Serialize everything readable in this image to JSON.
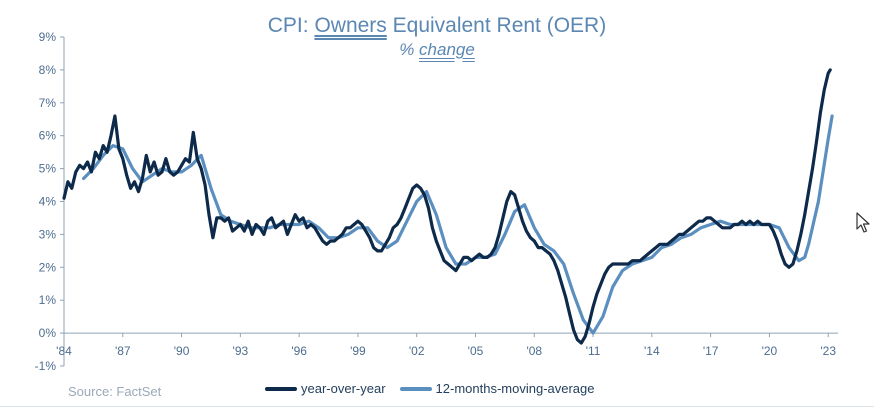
{
  "title_parts": {
    "pre": "CPI: ",
    "underlined": "Owners",
    "post": " Equivalent Rent (OER)"
  },
  "subtitle_parts": {
    "pre": "% ",
    "underlined": "change"
  },
  "source": "Source: FactSet",
  "colors": {
    "yoy": "#0d2a4a",
    "ma": "#5b8fc0",
    "axis": "#8fa3b5",
    "title": "#5b87b3"
  },
  "cursor_icon": "mouse-pointer-icon",
  "chart_data": {
    "type": "line",
    "title": "CPI: Owners Equivalent Rent (OER)",
    "subtitle": "% change",
    "xlabel": "",
    "ylabel": "",
    "xlim": [
      1984,
      2023.5
    ],
    "ylim": [
      -1,
      9
    ],
    "x_ticks": [
      {
        "value": 1984,
        "label": "'84"
      },
      {
        "value": 1987,
        "label": "'87"
      },
      {
        "value": 1990,
        "label": "'90"
      },
      {
        "value": 1993,
        "label": "'93"
      },
      {
        "value": 1996,
        "label": "'96"
      },
      {
        "value": 1999,
        "label": "'99"
      },
      {
        "value": 2002,
        "label": "'02"
      },
      {
        "value": 2005,
        "label": "'05"
      },
      {
        "value": 2008,
        "label": "'08"
      },
      {
        "value": 2011,
        "label": "'11"
      },
      {
        "value": 2014,
        "label": "'14"
      },
      {
        "value": 2017,
        "label": "'17"
      },
      {
        "value": 2020,
        "label": "'20"
      },
      {
        "value": 2023,
        "label": "'23"
      }
    ],
    "y_ticks": [
      {
        "value": -1,
        "label": "-1%"
      },
      {
        "value": 0,
        "label": "0%"
      },
      {
        "value": 1,
        "label": "1%"
      },
      {
        "value": 2,
        "label": "2%"
      },
      {
        "value": 3,
        "label": "3%"
      },
      {
        "value": 4,
        "label": "4%"
      },
      {
        "value": 5,
        "label": "5%"
      },
      {
        "value": 6,
        "label": "6%"
      },
      {
        "value": 7,
        "label": "7%"
      },
      {
        "value": 8,
        "label": "8%"
      },
      {
        "value": 9,
        "label": "9%"
      }
    ],
    "grid": false,
    "legend_position": "bottom",
    "series": [
      {
        "name": "year-over-year",
        "points": [
          [
            1984.0,
            4.1
          ],
          [
            1984.2,
            4.6
          ],
          [
            1984.4,
            4.4
          ],
          [
            1984.6,
            4.9
          ],
          [
            1984.8,
            5.1
          ],
          [
            1985.0,
            5.0
          ],
          [
            1985.2,
            5.2
          ],
          [
            1985.4,
            4.9
          ],
          [
            1985.6,
            5.5
          ],
          [
            1985.8,
            5.3
          ],
          [
            1986.0,
            5.7
          ],
          [
            1986.2,
            5.5
          ],
          [
            1986.4,
            6.0
          ],
          [
            1986.6,
            6.6
          ],
          [
            1986.8,
            5.6
          ],
          [
            1987.0,
            5.3
          ],
          [
            1987.2,
            4.8
          ],
          [
            1987.4,
            4.4
          ],
          [
            1987.6,
            4.6
          ],
          [
            1987.8,
            4.3
          ],
          [
            1988.0,
            4.7
          ],
          [
            1988.2,
            5.4
          ],
          [
            1988.4,
            4.9
          ],
          [
            1988.6,
            5.2
          ],
          [
            1988.8,
            4.8
          ],
          [
            1989.0,
            4.9
          ],
          [
            1989.2,
            5.3
          ],
          [
            1989.4,
            4.9
          ],
          [
            1989.6,
            4.8
          ],
          [
            1989.8,
            4.9
          ],
          [
            1990.0,
            5.1
          ],
          [
            1990.2,
            5.3
          ],
          [
            1990.4,
            5.2
          ],
          [
            1990.6,
            6.1
          ],
          [
            1990.8,
            5.3
          ],
          [
            1991.0,
            5.0
          ],
          [
            1991.2,
            4.5
          ],
          [
            1991.4,
            3.6
          ],
          [
            1991.6,
            2.9
          ],
          [
            1991.8,
            3.5
          ],
          [
            1992.0,
            3.5
          ],
          [
            1992.2,
            3.4
          ],
          [
            1992.4,
            3.5
          ],
          [
            1992.6,
            3.1
          ],
          [
            1992.8,
            3.2
          ],
          [
            1993.0,
            3.3
          ],
          [
            1993.2,
            3.1
          ],
          [
            1993.4,
            3.4
          ],
          [
            1993.6,
            3.0
          ],
          [
            1993.8,
            3.3
          ],
          [
            1994.0,
            3.2
          ],
          [
            1994.2,
            3.0
          ],
          [
            1994.4,
            3.4
          ],
          [
            1994.6,
            3.5
          ],
          [
            1994.8,
            3.2
          ],
          [
            1995.0,
            3.3
          ],
          [
            1995.2,
            3.4
          ],
          [
            1995.4,
            3.0
          ],
          [
            1995.6,
            3.3
          ],
          [
            1995.8,
            3.6
          ],
          [
            1996.0,
            3.4
          ],
          [
            1996.2,
            3.5
          ],
          [
            1996.4,
            3.2
          ],
          [
            1996.6,
            3.3
          ],
          [
            1996.8,
            3.2
          ],
          [
            1997.0,
            3.0
          ],
          [
            1997.2,
            2.8
          ],
          [
            1997.4,
            2.7
          ],
          [
            1997.6,
            2.8
          ],
          [
            1997.8,
            2.8
          ],
          [
            1998.0,
            2.9
          ],
          [
            1998.2,
            3.0
          ],
          [
            1998.4,
            3.2
          ],
          [
            1998.6,
            3.2
          ],
          [
            1998.8,
            3.3
          ],
          [
            1999.0,
            3.4
          ],
          [
            1999.2,
            3.3
          ],
          [
            1999.4,
            3.1
          ],
          [
            1999.6,
            2.9
          ],
          [
            1999.8,
            2.6
          ],
          [
            2000.0,
            2.5
          ],
          [
            2000.2,
            2.5
          ],
          [
            2000.4,
            2.7
          ],
          [
            2000.6,
            2.9
          ],
          [
            2000.8,
            3.2
          ],
          [
            2001.0,
            3.3
          ],
          [
            2001.2,
            3.5
          ],
          [
            2001.4,
            3.8
          ],
          [
            2001.6,
            4.1
          ],
          [
            2001.8,
            4.4
          ],
          [
            2002.0,
            4.5
          ],
          [
            2002.2,
            4.4
          ],
          [
            2002.4,
            4.2
          ],
          [
            2002.6,
            3.8
          ],
          [
            2002.8,
            3.2
          ],
          [
            2003.0,
            2.8
          ],
          [
            2003.2,
            2.5
          ],
          [
            2003.4,
            2.2
          ],
          [
            2003.6,
            2.1
          ],
          [
            2003.8,
            2.0
          ],
          [
            2004.0,
            1.9
          ],
          [
            2004.2,
            2.1
          ],
          [
            2004.4,
            2.3
          ],
          [
            2004.6,
            2.3
          ],
          [
            2004.8,
            2.2
          ],
          [
            2005.0,
            2.3
          ],
          [
            2005.2,
            2.4
          ],
          [
            2005.4,
            2.3
          ],
          [
            2005.6,
            2.3
          ],
          [
            2005.8,
            2.4
          ],
          [
            2006.0,
            2.6
          ],
          [
            2006.2,
            3.0
          ],
          [
            2006.4,
            3.5
          ],
          [
            2006.6,
            4.0
          ],
          [
            2006.8,
            4.3
          ],
          [
            2007.0,
            4.2
          ],
          [
            2007.2,
            3.8
          ],
          [
            2007.4,
            3.4
          ],
          [
            2007.6,
            3.1
          ],
          [
            2007.8,
            2.9
          ],
          [
            2008.0,
            2.8
          ],
          [
            2008.2,
            2.6
          ],
          [
            2008.4,
            2.6
          ],
          [
            2008.6,
            2.5
          ],
          [
            2008.8,
            2.4
          ],
          [
            2009.0,
            2.2
          ],
          [
            2009.2,
            1.9
          ],
          [
            2009.4,
            1.5
          ],
          [
            2009.6,
            1.1
          ],
          [
            2009.8,
            0.6
          ],
          [
            2010.0,
            0.1
          ],
          [
            2010.2,
            -0.2
          ],
          [
            2010.4,
            -0.3
          ],
          [
            2010.6,
            -0.1
          ],
          [
            2010.8,
            0.3
          ],
          [
            2011.0,
            0.8
          ],
          [
            2011.2,
            1.2
          ],
          [
            2011.4,
            1.5
          ],
          [
            2011.6,
            1.8
          ],
          [
            2011.8,
            2.0
          ],
          [
            2012.0,
            2.1
          ],
          [
            2012.2,
            2.1
          ],
          [
            2012.4,
            2.1
          ],
          [
            2012.6,
            2.1
          ],
          [
            2012.8,
            2.1
          ],
          [
            2013.0,
            2.2
          ],
          [
            2013.2,
            2.2
          ],
          [
            2013.4,
            2.2
          ],
          [
            2013.6,
            2.3
          ],
          [
            2013.8,
            2.4
          ],
          [
            2014.0,
            2.5
          ],
          [
            2014.2,
            2.6
          ],
          [
            2014.4,
            2.7
          ],
          [
            2014.6,
            2.7
          ],
          [
            2014.8,
            2.7
          ],
          [
            2015.0,
            2.8
          ],
          [
            2015.2,
            2.9
          ],
          [
            2015.4,
            3.0
          ],
          [
            2015.6,
            3.0
          ],
          [
            2015.8,
            3.1
          ],
          [
            2016.0,
            3.2
          ],
          [
            2016.2,
            3.3
          ],
          [
            2016.4,
            3.4
          ],
          [
            2016.6,
            3.4
          ],
          [
            2016.8,
            3.5
          ],
          [
            2017.0,
            3.5
          ],
          [
            2017.2,
            3.4
          ],
          [
            2017.4,
            3.3
          ],
          [
            2017.6,
            3.2
          ],
          [
            2017.8,
            3.2
          ],
          [
            2018.0,
            3.2
          ],
          [
            2018.2,
            3.3
          ],
          [
            2018.4,
            3.3
          ],
          [
            2018.6,
            3.4
          ],
          [
            2018.8,
            3.3
          ],
          [
            2019.0,
            3.4
          ],
          [
            2019.2,
            3.3
          ],
          [
            2019.4,
            3.4
          ],
          [
            2019.6,
            3.3
          ],
          [
            2019.8,
            3.3
          ],
          [
            2020.0,
            3.3
          ],
          [
            2020.2,
            3.1
          ],
          [
            2020.4,
            2.8
          ],
          [
            2020.6,
            2.4
          ],
          [
            2020.8,
            2.1
          ],
          [
            2021.0,
            2.0
          ],
          [
            2021.2,
            2.1
          ],
          [
            2021.4,
            2.5
          ],
          [
            2021.6,
            3.0
          ],
          [
            2021.8,
            3.6
          ],
          [
            2022.0,
            4.3
          ],
          [
            2022.2,
            5.0
          ],
          [
            2022.4,
            5.8
          ],
          [
            2022.6,
            6.7
          ],
          [
            2022.8,
            7.4
          ],
          [
            2023.0,
            7.9
          ],
          [
            2023.1,
            8.0
          ]
        ]
      },
      {
        "name": "12-months-moving-average",
        "points": [
          [
            1985.0,
            4.7
          ],
          [
            1985.5,
            5.0
          ],
          [
            1986.0,
            5.4
          ],
          [
            1986.5,
            5.7
          ],
          [
            1987.0,
            5.6
          ],
          [
            1987.5,
            5.0
          ],
          [
            1988.0,
            4.6
          ],
          [
            1988.5,
            4.8
          ],
          [
            1989.0,
            5.0
          ],
          [
            1989.5,
            4.9
          ],
          [
            1990.0,
            4.9
          ],
          [
            1990.5,
            5.1
          ],
          [
            1991.0,
            5.4
          ],
          [
            1991.5,
            4.4
          ],
          [
            1992.0,
            3.6
          ],
          [
            1992.5,
            3.4
          ],
          [
            1993.0,
            3.3
          ],
          [
            1993.5,
            3.2
          ],
          [
            1994.0,
            3.2
          ],
          [
            1994.5,
            3.2
          ],
          [
            1995.0,
            3.3
          ],
          [
            1995.5,
            3.3
          ],
          [
            1996.0,
            3.3
          ],
          [
            1996.5,
            3.4
          ],
          [
            1997.0,
            3.2
          ],
          [
            1997.5,
            2.9
          ],
          [
            1998.0,
            2.9
          ],
          [
            1998.5,
            3.0
          ],
          [
            1999.0,
            3.2
          ],
          [
            1999.5,
            3.2
          ],
          [
            2000.0,
            2.8
          ],
          [
            2000.5,
            2.6
          ],
          [
            2001.0,
            2.8
          ],
          [
            2001.5,
            3.4
          ],
          [
            2002.0,
            4.0
          ],
          [
            2002.5,
            4.3
          ],
          [
            2003.0,
            3.6
          ],
          [
            2003.5,
            2.6
          ],
          [
            2004.0,
            2.1
          ],
          [
            2004.5,
            2.1
          ],
          [
            2005.0,
            2.3
          ],
          [
            2005.5,
            2.3
          ],
          [
            2006.0,
            2.4
          ],
          [
            2006.5,
            3.0
          ],
          [
            2007.0,
            3.7
          ],
          [
            2007.5,
            3.9
          ],
          [
            2008.0,
            3.2
          ],
          [
            2008.5,
            2.7
          ],
          [
            2009.0,
            2.5
          ],
          [
            2009.5,
            2.1
          ],
          [
            2010.0,
            1.2
          ],
          [
            2010.5,
            0.4
          ],
          [
            2011.0,
            0.0
          ],
          [
            2011.5,
            0.5
          ],
          [
            2012.0,
            1.4
          ],
          [
            2012.5,
            1.9
          ],
          [
            2013.0,
            2.1
          ],
          [
            2013.5,
            2.2
          ],
          [
            2014.0,
            2.3
          ],
          [
            2014.5,
            2.6
          ],
          [
            2015.0,
            2.7
          ],
          [
            2015.5,
            2.9
          ],
          [
            2016.0,
            3.0
          ],
          [
            2016.5,
            3.2
          ],
          [
            2017.0,
            3.3
          ],
          [
            2017.5,
            3.4
          ],
          [
            2018.0,
            3.3
          ],
          [
            2018.5,
            3.3
          ],
          [
            2019.0,
            3.3
          ],
          [
            2019.5,
            3.3
          ],
          [
            2020.0,
            3.3
          ],
          [
            2020.5,
            3.2
          ],
          [
            2021.0,
            2.6
          ],
          [
            2021.5,
            2.2
          ],
          [
            2021.8,
            2.3
          ],
          [
            2022.0,
            2.7
          ],
          [
            2022.5,
            4.0
          ],
          [
            2023.0,
            5.9
          ],
          [
            2023.2,
            6.6
          ]
        ]
      }
    ]
  }
}
